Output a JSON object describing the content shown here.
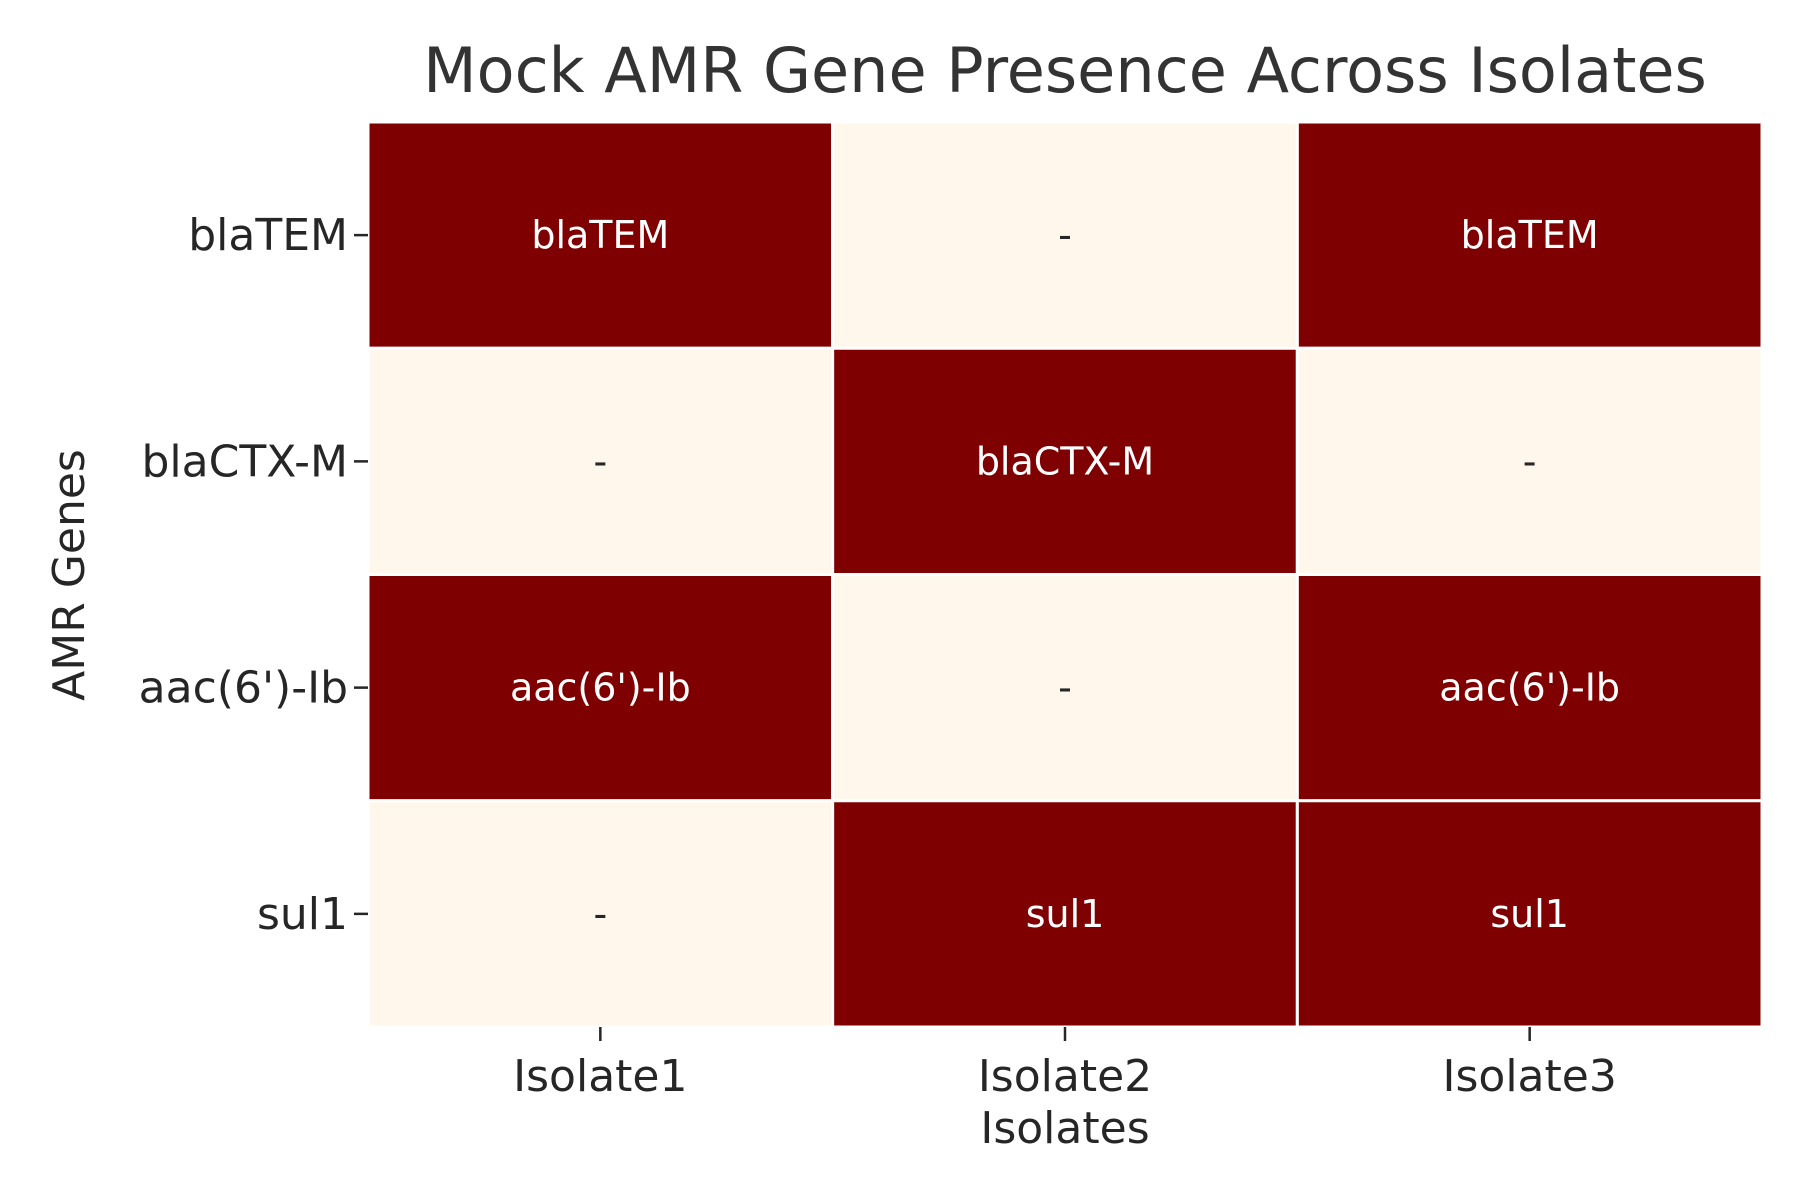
{
  "chart_data": {
    "type": "heatmap",
    "title": "Mock AMR Gene Presence Across Isolates",
    "xlabel": "Isolates",
    "ylabel": "AMR Genes",
    "x": [
      "Isolate1",
      "Isolate2",
      "Isolate3"
    ],
    "y": [
      "blaTEM",
      "blaCTX-M",
      "aac(6')-Ib",
      "sul1"
    ],
    "values": [
      [
        1,
        0,
        1
      ],
      [
        0,
        1,
        0
      ],
      [
        1,
        0,
        1
      ],
      [
        0,
        1,
        1
      ]
    ],
    "annotations": [
      [
        "blaTEM",
        "-",
        "blaTEM"
      ],
      [
        "-",
        "blaCTX-M",
        "-"
      ],
      [
        "aac(6')-Ib",
        "-",
        "aac(6')-Ib"
      ],
      [
        "-",
        "sul1",
        "sul1"
      ]
    ],
    "colors": {
      "present": "#7f0000",
      "absent": "#fff7ec",
      "present_text": "#ffffff",
      "absent_text": "#262626",
      "axis_text": "#262626",
      "title_text": "#333333",
      "cell_border": "#ffffff"
    },
    "legend": "none",
    "grid": false
  }
}
